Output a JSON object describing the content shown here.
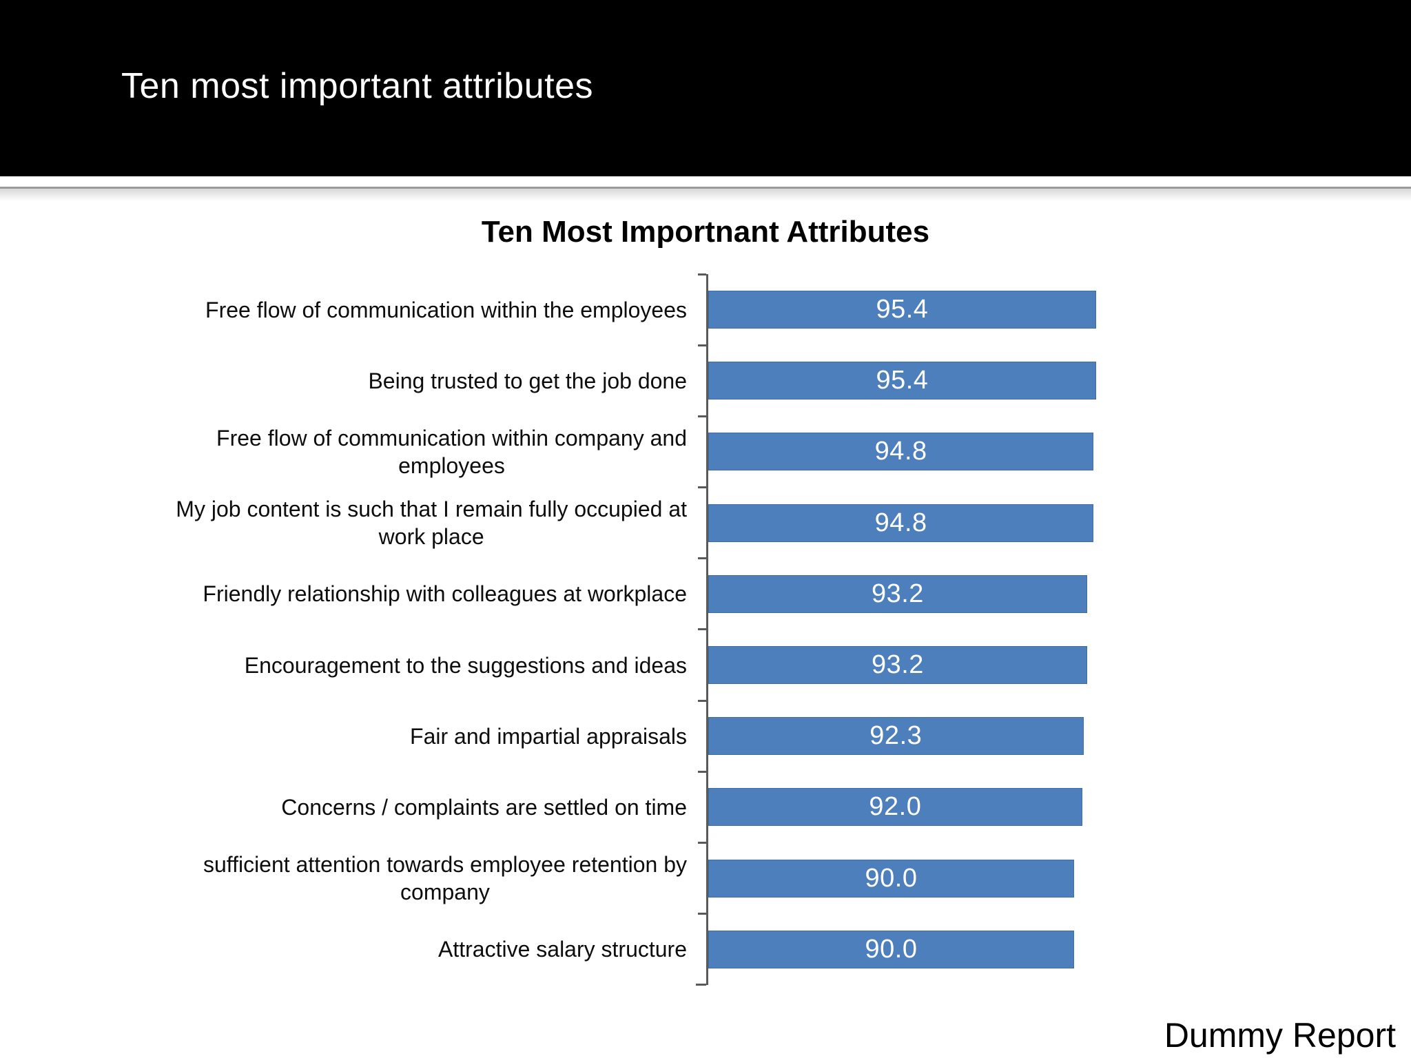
{
  "slide": {
    "header_title": "Ten most important attributes",
    "footer_label": "Dummy Report"
  },
  "chart_data": {
    "type": "bar",
    "orientation": "horizontal",
    "title": "Ten Most Importnant Attributes",
    "categories": [
      "Free flow of communication within the employees",
      "Being trusted to get the job done",
      "Free flow of communication within company and\nemployees",
      "My job content is such that I remain fully occupied at\nwork place",
      "Friendly relationship with colleagues at workplace",
      "Encouragement to the suggestions and ideas",
      "Fair and impartial appraisals",
      "Concerns / complaints are settled on time",
      "sufficient attention towards employee retention by\ncompany",
      "Attractive salary structure"
    ],
    "values": [
      95.4,
      95.4,
      94.8,
      94.8,
      93.2,
      93.2,
      92.3,
      92.0,
      90.0,
      90.0
    ],
    "value_label_decimals": 1,
    "xlim": [
      0,
      100
    ],
    "grid": false,
    "legend": false,
    "bar_color": "#4c7fbc",
    "bar_border_color": "#3d6da3",
    "value_label_color": "#ffffff",
    "axis_color": "#5a5a5a",
    "label_color": "#0d0d0d"
  }
}
